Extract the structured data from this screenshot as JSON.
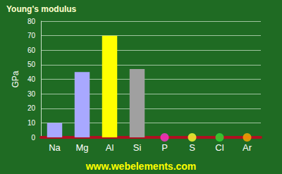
{
  "chart_data": {
    "type": "bar",
    "title": "Young's modulus",
    "y_label": "GPa",
    "categories": [
      "Na",
      "Mg",
      "Al",
      "Si",
      "P",
      "S",
      "Cl",
      "Ar"
    ],
    "values": [
      10,
      45,
      70,
      47,
      null,
      null,
      null,
      null
    ],
    "colors": [
      "#a8a8ff",
      "#a8a8ff",
      "#ffff00",
      "#a0a0a0",
      "#ff33cc",
      "#ffff33",
      "#33dd33",
      "#ffaa00"
    ],
    "ylim": [
      0,
      80
    ],
    "yticks": [
      0,
      10,
      20,
      30,
      40,
      50,
      60,
      70,
      80
    ],
    "grid": true,
    "source": "www.webelements.com"
  }
}
